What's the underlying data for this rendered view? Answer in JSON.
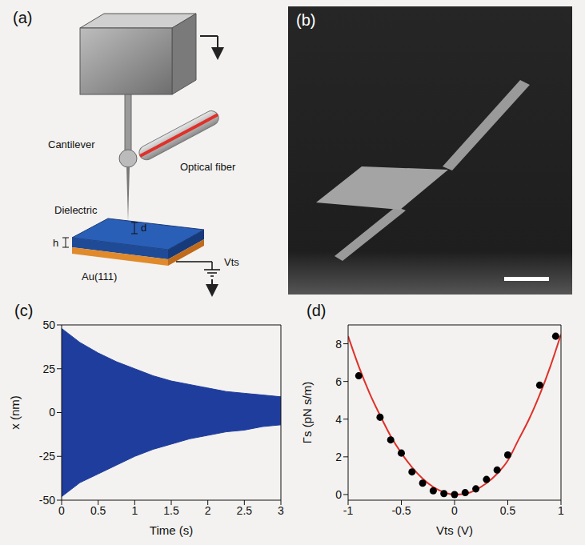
{
  "panels": {
    "a": {
      "panel": "(a)",
      "labels": {
        "cantilever": "Cantilever",
        "fiber": "Optical fiber",
        "dielectric": "Dielectric",
        "d": "d",
        "h": "h",
        "substrate": "Au(111)",
        "voltage": "Vts"
      }
    },
    "b": {
      "panel": "(b)"
    }
  },
  "chart_data": [
    {
      "type": "area",
      "panel": "(c)",
      "x_label": "Time (s)",
      "y_label": "x (nm)",
      "x": [
        0,
        0.25,
        0.5,
        0.75,
        1,
        1.25,
        1.5,
        1.75,
        2,
        2.25,
        2.5,
        2.75,
        3
      ],
      "upper": [
        48,
        40,
        34,
        29,
        25,
        21,
        18,
        16,
        14,
        12,
        11,
        10,
        9
      ],
      "lower": [
        -48,
        -40,
        -35,
        -30,
        -25,
        -21,
        -18,
        -15,
        -13,
        -11,
        -10,
        -8,
        -7
      ],
      "color": "#1f3d9c",
      "xlim": [
        0,
        3
      ],
      "xticks": [
        0,
        0.5,
        1,
        1.5,
        2,
        2.5,
        3
      ],
      "ylim": [
        -50,
        50
      ],
      "yticks": [
        -50,
        -25,
        0,
        25,
        50
      ]
    },
    {
      "type": "scatter",
      "panel": "(d)",
      "x_label": "Vts (V)",
      "y_label": "Γs (pN s/m)",
      "series": [
        {
          "type": "scatter",
          "color": "#000000",
          "marker": "circle",
          "x": [
            -0.9,
            -0.7,
            -0.6,
            -0.5,
            -0.4,
            -0.3,
            -0.2,
            -0.1,
            0,
            0.1,
            0.2,
            0.3,
            0.4,
            0.5,
            0.8,
            0.95
          ],
          "values": [
            6.3,
            4.1,
            2.9,
            2.2,
            1.2,
            0.6,
            0.2,
            0.05,
            0,
            0.1,
            0.3,
            0.8,
            1.3,
            2.1,
            5.8,
            8.4
          ]
        },
        {
          "type": "line",
          "color": "#e0302a",
          "x": [
            -1,
            -0.9,
            -0.8,
            -0.7,
            -0.6,
            -0.5,
            -0.4,
            -0.3,
            -0.2,
            -0.1,
            0,
            0.1,
            0.2,
            0.3,
            0.4,
            0.5,
            0.6,
            0.7,
            0.8,
            0.9,
            1
          ],
          "values": [
            8.4,
            6.8,
            5.4,
            4.2,
            3.1,
            2.2,
            1.45,
            0.85,
            0.4,
            0.12,
            0,
            0.04,
            0.25,
            0.6,
            1.1,
            1.8,
            2.9,
            4.0,
            5.3,
            6.8,
            8.5
          ]
        }
      ],
      "xlim": [
        -1,
        1
      ],
      "xticks": [
        -1,
        -0.5,
        0,
        0.5,
        1
      ],
      "ylim": [
        -0.3,
        9
      ],
      "yticks": [
        0,
        2,
        4,
        6,
        8
      ]
    }
  ]
}
